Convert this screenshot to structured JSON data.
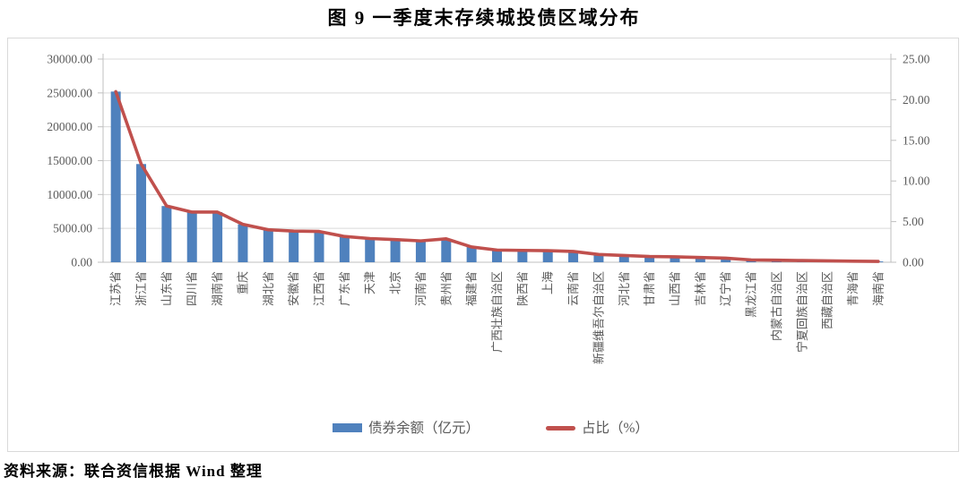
{
  "title": "图 9  一季度末存续城投债区域分布",
  "source_note": "资料来源：联合资信根据 Wind 整理",
  "colors": {
    "bar": "#4F81BD",
    "line": "#C0504D",
    "grid": "#D9D9D9",
    "axis_line": "#BFBFBF",
    "axis_text": "#595959",
    "box_border": "#D9D9D9"
  },
  "chart_data": {
    "type": "bar",
    "subtype": "combo-bar-line-dual-axis",
    "title": "图 9  一季度末存续城投债区域分布",
    "grid": "horizontal",
    "legend_position": "bottom",
    "categories": [
      "江苏省",
      "浙江省",
      "山东省",
      "四川省",
      "湖南省",
      "重庆",
      "湖北省",
      "安徽省",
      "江西省",
      "广东省",
      "天津",
      "北京",
      "河南省",
      "贵州省",
      "福建省",
      "广西壮族自治区",
      "陕西省",
      "上海",
      "云南省",
      "新疆维吾尔自治区",
      "河北省",
      "甘肃省",
      "山西省",
      "吉林省",
      "辽宁省",
      "黑龙江省",
      "内蒙古自治区",
      "宁夏回族自治区",
      "西藏自治区",
      "青海省",
      "海南省"
    ],
    "series": [
      {
        "name": "债券余额（亿元）",
        "type": "bar",
        "axis": "left",
        "color": "#4F81BD",
        "values": [
          25200,
          14500,
          8300,
          7400,
          7400,
          5600,
          4800,
          4600,
          4550,
          3800,
          3500,
          3350,
          3150,
          3450,
          2250,
          1800,
          1750,
          1700,
          1600,
          1150,
          1000,
          850,
          800,
          700,
          600,
          350,
          300,
          250,
          200,
          150,
          120
        ]
      },
      {
        "name": "占比（%）",
        "type": "line",
        "axis": "right",
        "color": "#C0504D",
        "values": [
          21.0,
          12.08,
          6.92,
          6.17,
          6.17,
          4.67,
          4.0,
          3.83,
          3.79,
          3.17,
          2.92,
          2.79,
          2.63,
          2.88,
          1.88,
          1.5,
          1.46,
          1.42,
          1.33,
          0.96,
          0.83,
          0.71,
          0.67,
          0.58,
          0.5,
          0.29,
          0.25,
          0.21,
          0.17,
          0.13,
          0.1
        ]
      }
    ],
    "left_axis": {
      "min": 0,
      "max": 30000,
      "step": 5000,
      "tick_labels": [
        "0.00",
        "5000.00",
        "10000.00",
        "15000.00",
        "20000.00",
        "25000.00",
        "30000.00"
      ]
    },
    "right_axis": {
      "min": 0,
      "max": 25,
      "step": 5,
      "tick_labels": [
        "0.00",
        "5.00",
        "10.00",
        "15.00",
        "20.00",
        "25.00"
      ]
    }
  }
}
